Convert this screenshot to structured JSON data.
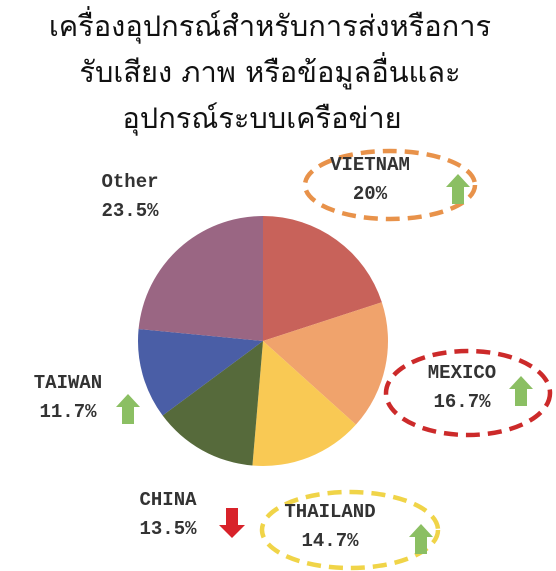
{
  "chart_data": {
    "type": "pie",
    "title": [
      "เครื่องอุปกรณ์สำหรับการส่งหรือการ",
      "รับเสียง ภาพ หรือข้อมูลอื่นและ",
      "อุปกรณ์ระบบเครือข่าย"
    ],
    "categories": [
      "VIETNAM",
      "MEXICO",
      "THAILAND",
      "CHINA",
      "TAIWAN",
      "Other"
    ],
    "values": [
      20,
      16.7,
      14.7,
      13.5,
      11.7,
      23.5
    ],
    "value_labels": [
      "20%",
      "16.7%",
      "14.7%",
      "13.5%",
      "11.7%",
      "23.5%"
    ],
    "colors": [
      "#c8625a",
      "#f0a36c",
      "#f9c954",
      "#566a3b",
      "#4a5ea6",
      "#9a6683"
    ],
    "trend": [
      "up",
      "up",
      "up",
      "down",
      "up",
      null
    ],
    "highlight": [
      "#e8924a",
      "#cc2a2a",
      "#f0d448",
      null,
      null,
      null
    ]
  }
}
